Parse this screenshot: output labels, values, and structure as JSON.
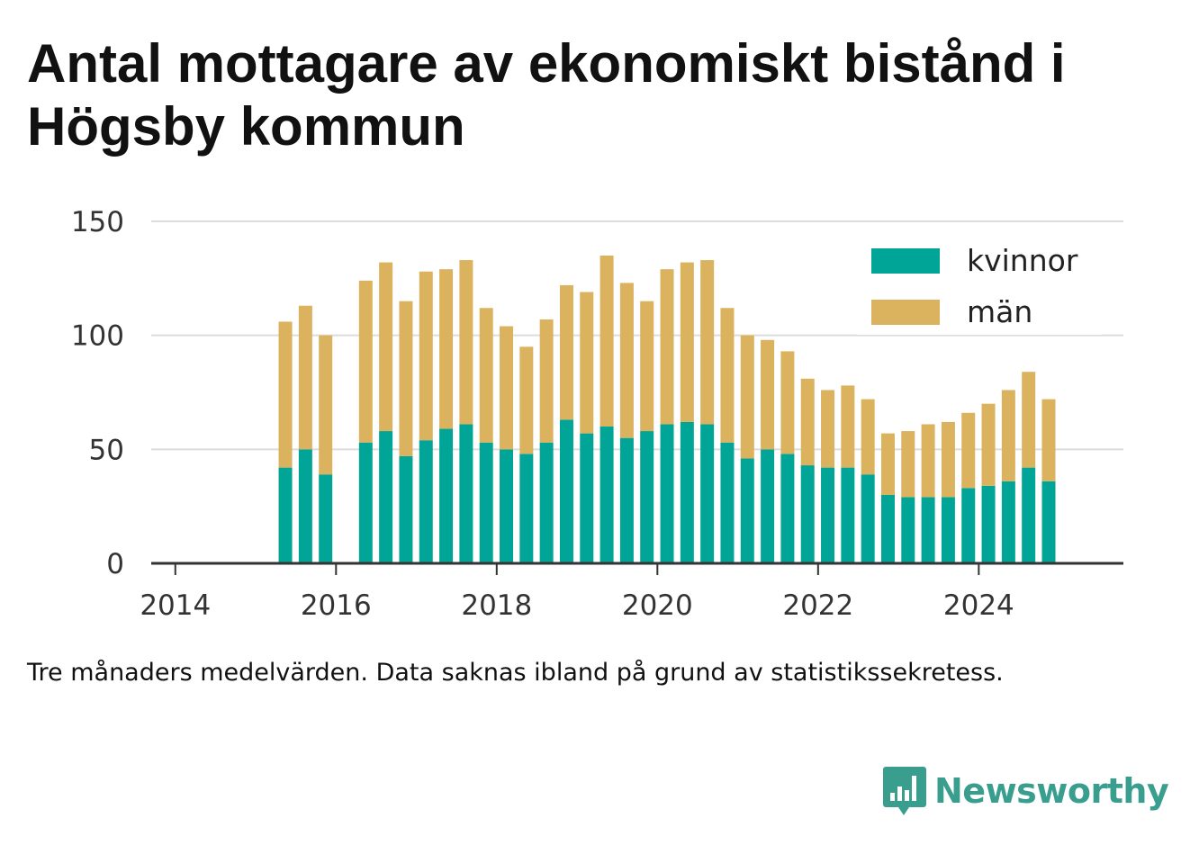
{
  "title": "Antal mottagare av ekonomiskt bistånd i Högsby kommun",
  "note": "Tre månaders medelvärden. Data saknas ibland på grund av statistikssekretess.",
  "brand": "Newsworthy",
  "colors": {
    "kvinnor": "#00a597",
    "man": "#dbb25e",
    "brand": "#3a9e8f"
  },
  "chart_data": {
    "type": "bar",
    "stacked": true,
    "title": "Antal mottagare av ekonomiskt bistånd i Högsby kommun",
    "xlabel": "",
    "ylabel": "",
    "ylim": [
      0,
      150
    ],
    "xlim": [
      2013.7,
      2025.8
    ],
    "y_ticks": [
      0,
      50,
      100,
      150
    ],
    "x_ticks": [
      2014,
      2016,
      2018,
      2020,
      2022,
      2024
    ],
    "grid": true,
    "legend_position": "top-right",
    "x": [
      2015.37,
      2015.62,
      2015.87,
      2016.37,
      2016.62,
      2016.87,
      2017.12,
      2017.37,
      2017.62,
      2017.87,
      2018.12,
      2018.37,
      2018.62,
      2018.87,
      2019.12,
      2019.37,
      2019.62,
      2019.87,
      2020.12,
      2020.37,
      2020.62,
      2020.87,
      2021.12,
      2021.37,
      2021.62,
      2021.87,
      2022.12,
      2022.37,
      2022.62,
      2022.87,
      2023.12,
      2023.37,
      2023.62,
      2023.87,
      2024.12,
      2024.37,
      2024.62,
      2024.87
    ],
    "series": [
      {
        "name": "kvinnor",
        "color": "#00a597",
        "values": [
          42,
          50,
          39,
          53,
          58,
          47,
          54,
          59,
          61,
          53,
          50,
          48,
          53,
          63,
          57,
          60,
          55,
          58,
          61,
          62,
          61,
          53,
          46,
          50,
          48,
          43,
          42,
          42,
          39,
          30,
          29,
          29,
          29,
          33,
          34,
          36,
          42,
          36
        ]
      },
      {
        "name": "män",
        "color": "#dbb25e",
        "values": [
          64,
          63,
          61,
          71,
          74,
          68,
          74,
          70,
          72,
          59,
          54,
          47,
          54,
          59,
          62,
          75,
          68,
          57,
          68,
          70,
          72,
          59,
          54,
          48,
          45,
          38,
          34,
          36,
          33,
          27,
          29,
          32,
          33,
          33,
          36,
          40,
          42,
          36
        ]
      }
    ]
  }
}
